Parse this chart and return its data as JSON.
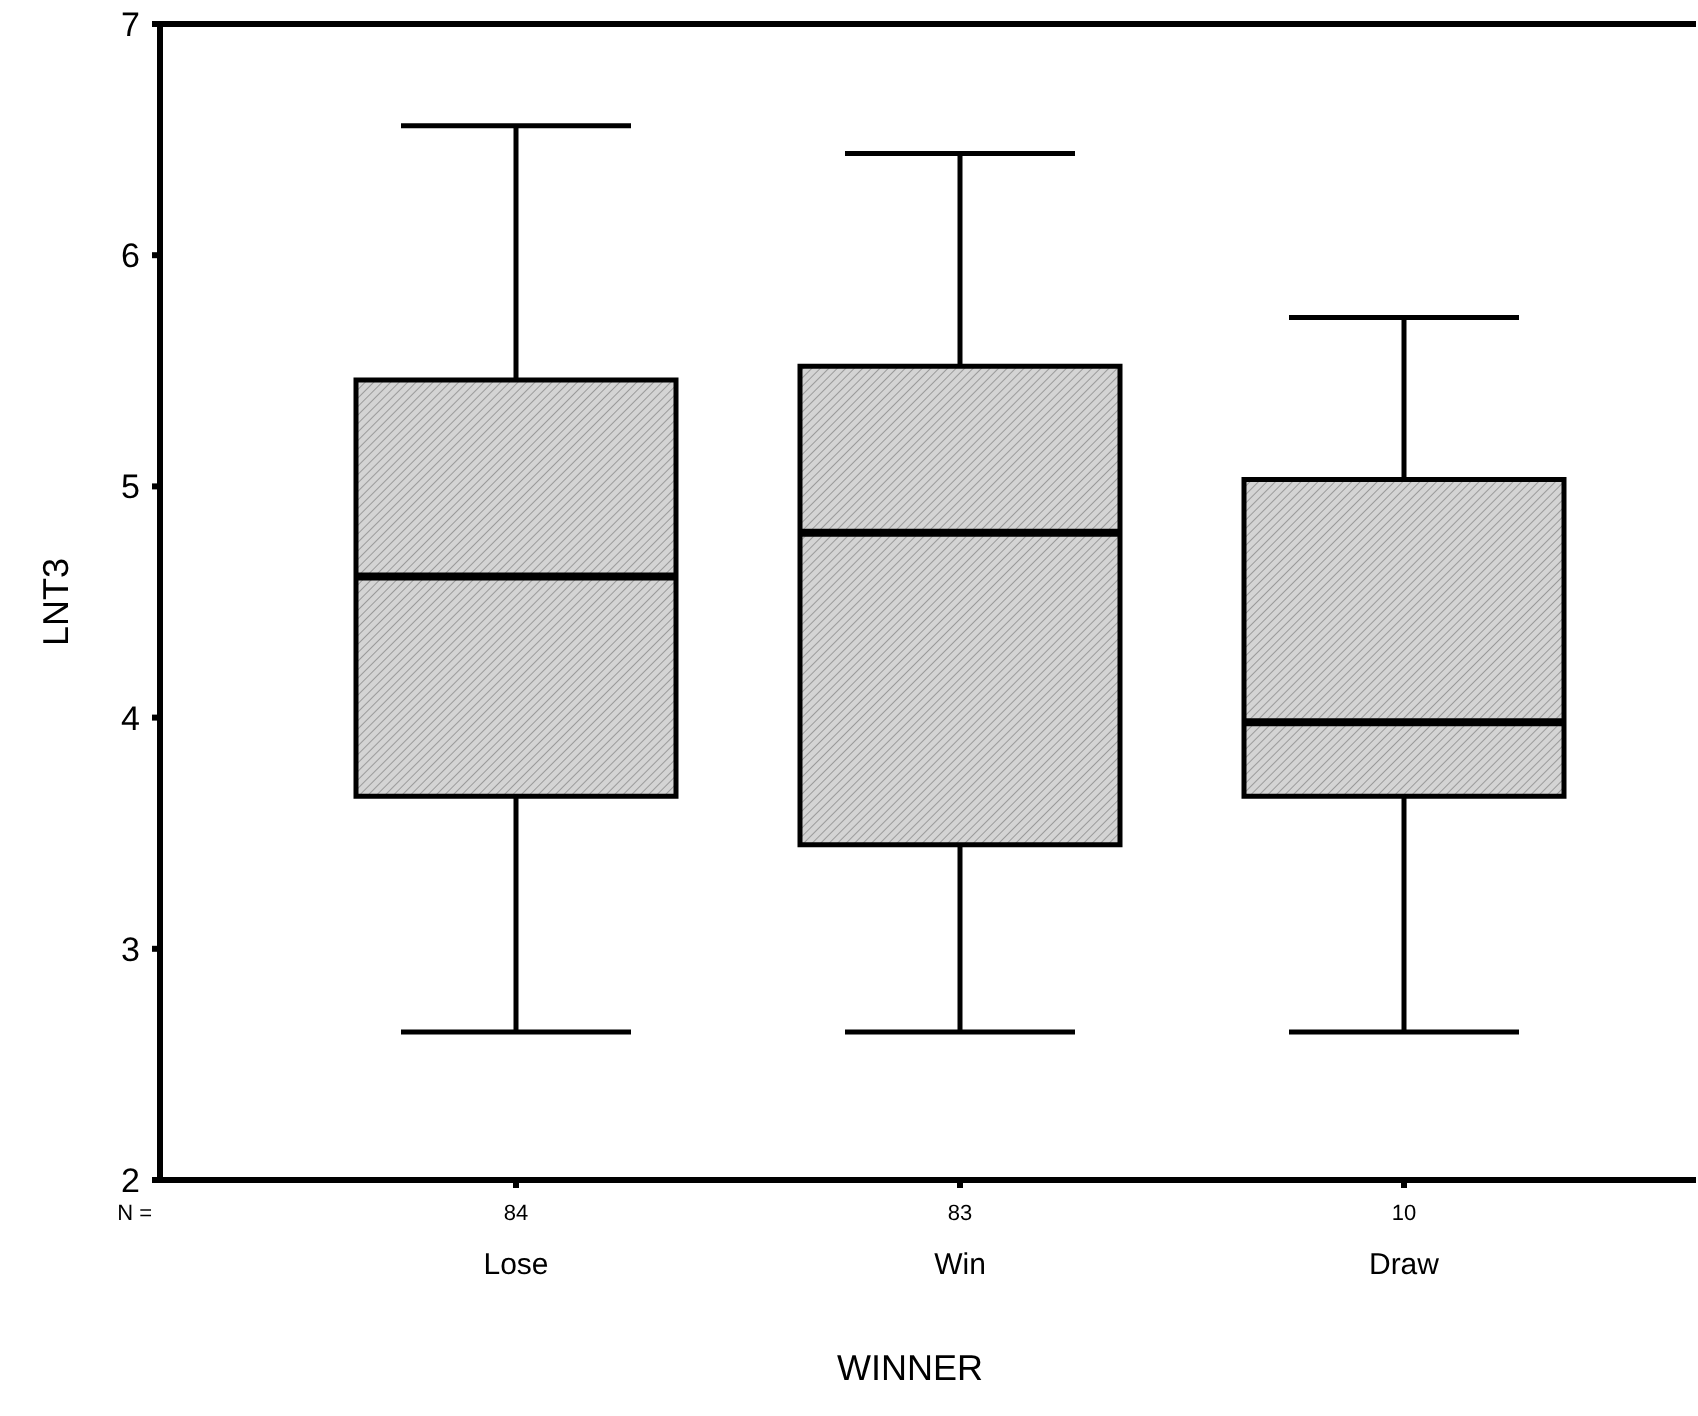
{
  "chart_data": {
    "type": "box",
    "xlabel": "WINNER",
    "ylabel": "LNT3",
    "categories": [
      "Lose",
      "Win",
      "Draw"
    ],
    "boxes": [
      {
        "low": 2.64,
        "q1": 3.66,
        "median": 4.61,
        "q3": 5.46,
        "high": 6.56
      },
      {
        "low": 2.64,
        "q1": 3.45,
        "median": 4.8,
        "q3": 5.52,
        "high": 6.44
      },
      {
        "low": 2.64,
        "q1": 3.66,
        "median": 3.98,
        "q3": 5.03,
        "high": 5.73
      }
    ],
    "color": "#d4d4d4",
    "ylim": [
      2,
      7
    ],
    "yticks": [
      2,
      3,
      4,
      5,
      6,
      7
    ],
    "grid": false,
    "annotations": [
      "N =",
      "84",
      "83",
      "10"
    ]
  }
}
